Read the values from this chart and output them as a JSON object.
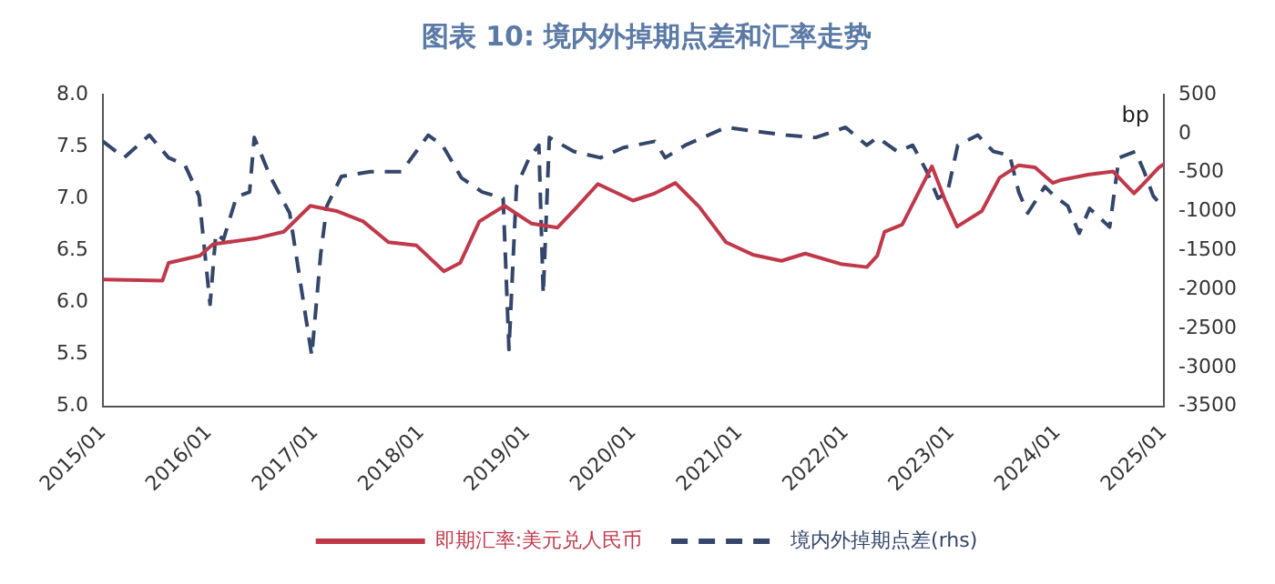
{
  "chart_data": {
    "type": "line",
    "title": "图表 10: 境内外掉期点差和汇率走势",
    "y2label": "bp",
    "xlim": [
      "2015-01",
      "2025-01"
    ],
    "xticks": [
      {
        "value": "2015-01",
        "label": "2015/01"
      },
      {
        "value": "2016-01",
        "label": "2016/01"
      },
      {
        "value": "2017-01",
        "label": "2017/01"
      },
      {
        "value": "2018-01",
        "label": "2018/01"
      },
      {
        "value": "2019-01",
        "label": "2019/01"
      },
      {
        "value": "2020-01",
        "label": "2020/01"
      },
      {
        "value": "2021-01",
        "label": "2021/01"
      },
      {
        "value": "2022-01",
        "label": "2022/01"
      },
      {
        "value": "2023-01",
        "label": "2023/01"
      },
      {
        "value": "2024-01",
        "label": "2024/01"
      },
      {
        "value": "2025-01",
        "label": "2025/01"
      }
    ],
    "ylim": [
      5,
      8
    ],
    "yticks": [
      {
        "value": 5,
        "label": "5.0"
      },
      {
        "value": 5.5,
        "label": "5.5"
      },
      {
        "value": 6,
        "label": "6.0"
      },
      {
        "value": 6.5,
        "label": "6.5"
      },
      {
        "value": 7,
        "label": "7.0"
      },
      {
        "value": 7.5,
        "label": "7.5"
      },
      {
        "value": 8,
        "label": "8.0"
      }
    ],
    "y2lim": [
      -3500,
      500
    ],
    "y2ticks": [
      -3500,
      -3000,
      -2500,
      -2000,
      -1500,
      -1000,
      -500,
      0,
      500
    ],
    "grid": false,
    "legend": "bottom",
    "marker": "none",
    "series": [
      {
        "name": "即期汇率:美元兑人民币",
        "color": "#c0394b",
        "line_style": "solid",
        "x": [
          "2015-01-01",
          "2015-07-25",
          "2015-08-15",
          "2015-12-01",
          "2016-01-15",
          "2016-06-15",
          "2016-09-15",
          "2016-12-15",
          "2017-03-15",
          "2017-06-15",
          "2017-09-10",
          "2017-12-15",
          "2018-03-20",
          "2018-05-15",
          "2018-07-20",
          "2018-10-15",
          "2019-01-15",
          "2019-04-15",
          "2019-06-15",
          "2019-09-01",
          "2019-12-31",
          "2020-03-15",
          "2020-05-25",
          "2020-08-15",
          "2020-11-15",
          "2021-02-15",
          "2021-05-25",
          "2021-08-15",
          "2021-12-15",
          "2022-03-15",
          "2022-04-20",
          "2022-05-15",
          "2022-07-15",
          "2022-10-25",
          "2022-12-10",
          "2023-01-20",
          "2023-04-15",
          "2023-06-15",
          "2023-08-20",
          "2023-10-15",
          "2023-12-15",
          "2024-01-15",
          "2024-04-15",
          "2024-07-10",
          "2024-09-20",
          "2024-10-15",
          "2024-12-15",
          "2025-01-01"
        ],
        "values": [
          6.22,
          6.21,
          6.38,
          6.45,
          6.56,
          6.62,
          6.68,
          6.93,
          6.88,
          6.78,
          6.58,
          6.55,
          6.3,
          6.38,
          6.78,
          6.93,
          6.76,
          6.72,
          6.9,
          7.14,
          6.98,
          7.05,
          7.15,
          6.92,
          6.58,
          6.46,
          6.4,
          6.47,
          6.37,
          6.34,
          6.45,
          6.68,
          6.75,
          7.31,
          6.98,
          6.73,
          6.88,
          7.2,
          7.32,
          7.3,
          7.15,
          7.18,
          7.23,
          7.26,
          7.05,
          7.12,
          7.3,
          7.33
        ]
      },
      {
        "name": "境内外掉期点差(rhs)",
        "color": "#34466a",
        "line_style": "dashed",
        "axis": "y2",
        "x": [
          "2015-01-01",
          "2015-03-15",
          "2015-06-10",
          "2015-08-15",
          "2015-10-10",
          "2015-11-28",
          "2016-01-05",
          "2016-01-25",
          "2016-02-20",
          "2016-04-05",
          "2016-05-20",
          "2016-06-05",
          "2016-07-30",
          "2016-10-05",
          "2016-12-20",
          "2017-01-20",
          "2017-02-10",
          "2017-04-01",
          "2017-07-10",
          "2017-10-25",
          "2017-12-15",
          "2018-01-25",
          "2018-03-15",
          "2018-05-20",
          "2018-07-30",
          "2018-10-10",
          "2018-10-30",
          "2018-11-25",
          "2019-01-08",
          "2019-02-10",
          "2019-02-25",
          "2019-03-18",
          "2019-06-10",
          "2019-09-10",
          "2019-11-28",
          "2020-03-15",
          "2020-04-20",
          "2020-06-28",
          "2020-11-15",
          "2021-02-25",
          "2021-06-10",
          "2021-09-20",
          "2022-01-01",
          "2022-03-15",
          "2022-04-20",
          "2022-06-28",
          "2022-08-20",
          "2022-10-08",
          "2022-11-15",
          "2022-12-18",
          "2023-01-22",
          "2023-04-01",
          "2023-05-25",
          "2023-07-20",
          "2023-08-20",
          "2023-09-20",
          "2023-11-18",
          "2023-12-20",
          "2024-02-05",
          "2024-03-15",
          "2024-04-20",
          "2024-06-28",
          "2024-07-30",
          "2024-09-25",
          "2024-10-25",
          "2024-11-25",
          "2025-01-01"
        ],
        "values": [
          -100,
          -310,
          -20,
          -310,
          -400,
          -800,
          -2190,
          -1280,
          -1360,
          -810,
          -750,
          -50,
          -550,
          -1020,
          -2850,
          -1540,
          -930,
          -550,
          -490,
          -490,
          -230,
          -20,
          -150,
          -570,
          -750,
          -830,
          -2770,
          -680,
          -310,
          -150,
          -2060,
          -50,
          -230,
          -310,
          -180,
          -100,
          -310,
          -150,
          80,
          30,
          -20,
          -50,
          80,
          -150,
          -50,
          -230,
          -150,
          -490,
          -830,
          -750,
          -150,
          -20,
          -230,
          -280,
          -750,
          -1020,
          -680,
          -800,
          -930,
          -1280,
          -960,
          -1200,
          -310,
          -230,
          -490,
          -800,
          -960
        ]
      }
    ]
  }
}
